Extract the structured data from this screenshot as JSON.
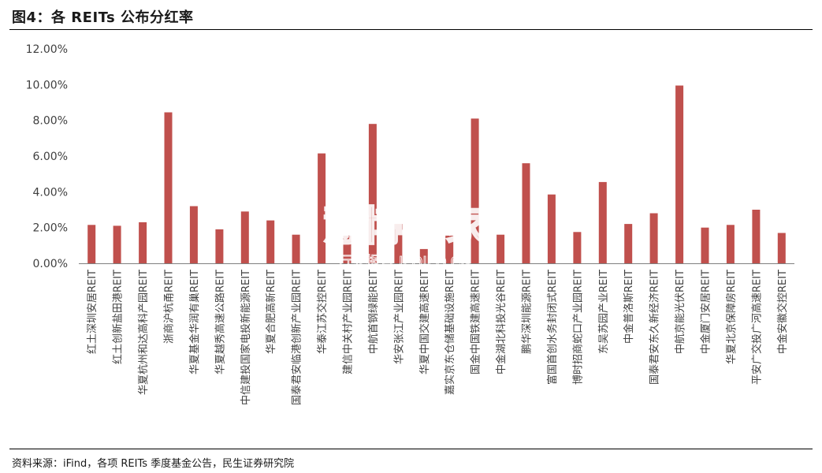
{
  "title": "图4：各 REITs 公布分红率",
  "source": "资料来源：iFind，各项 REITs 季度基金公告，民生证券研究院",
  "watermark": {
    "main": "慧博购家",
    "sub": "行业报告 IPOIPO.CN"
  },
  "colors": {
    "bar": "#C0504D",
    "axis": "#808080",
    "text": "#404040"
  },
  "chart_data": {
    "type": "bar",
    "title": "",
    "xlabel": "",
    "ylabel": "",
    "ylim": [
      0,
      12
    ],
    "y_ticks": [
      "0.00%",
      "2.00%",
      "4.00%",
      "6.00%",
      "8.00%",
      "10.00%",
      "12.00%"
    ],
    "grid": false,
    "legend": "none",
    "categories": [
      "红土深圳安居REIT",
      "红土创新盐田港REIT",
      "华夏杭州和达高科产园REIT",
      "浙商沪杭甬REIT",
      "华夏基金华润有巢REIT",
      "华夏越秀高速公路REIT",
      "中信建投国家电投新能源REIT",
      "华夏合肥高新REIT",
      "国泰君安临港创新产业园REIT",
      "华泰江苏交控REIT",
      "建信中关村产业园REIT",
      "中航首钢绿能REIT",
      "华安张江产业园REIT",
      "华夏中国交建高速REIT",
      "嘉实京东仓储基础设施REIT",
      "国金中国铁建高速REIT",
      "中金湖北科投光谷REIT",
      "鹏华深圳能源REIT",
      "富国首创水务封闭式REIT",
      "博时招商蛇口产业园REIT",
      "东吴苏园产业REIT",
      "中金普洛斯REIT",
      "国泰君安东久新经济REIT",
      "中航京能光伏REIT",
      "中金厦门安居REIT",
      "华夏北京保障房REIT",
      "平安广交投广河高速REIT",
      "中金安徽交控REIT"
    ],
    "values": [
      2.15,
      2.1,
      2.3,
      8.45,
      3.2,
      1.9,
      2.9,
      2.4,
      1.6,
      6.15,
      1.55,
      7.8,
      2.2,
      0.8,
      1.55,
      8.1,
      1.6,
      5.6,
      3.85,
      1.75,
      4.55,
      2.2,
      2.8,
      9.95,
      2.0,
      2.15,
      3.0,
      1.7
    ]
  }
}
